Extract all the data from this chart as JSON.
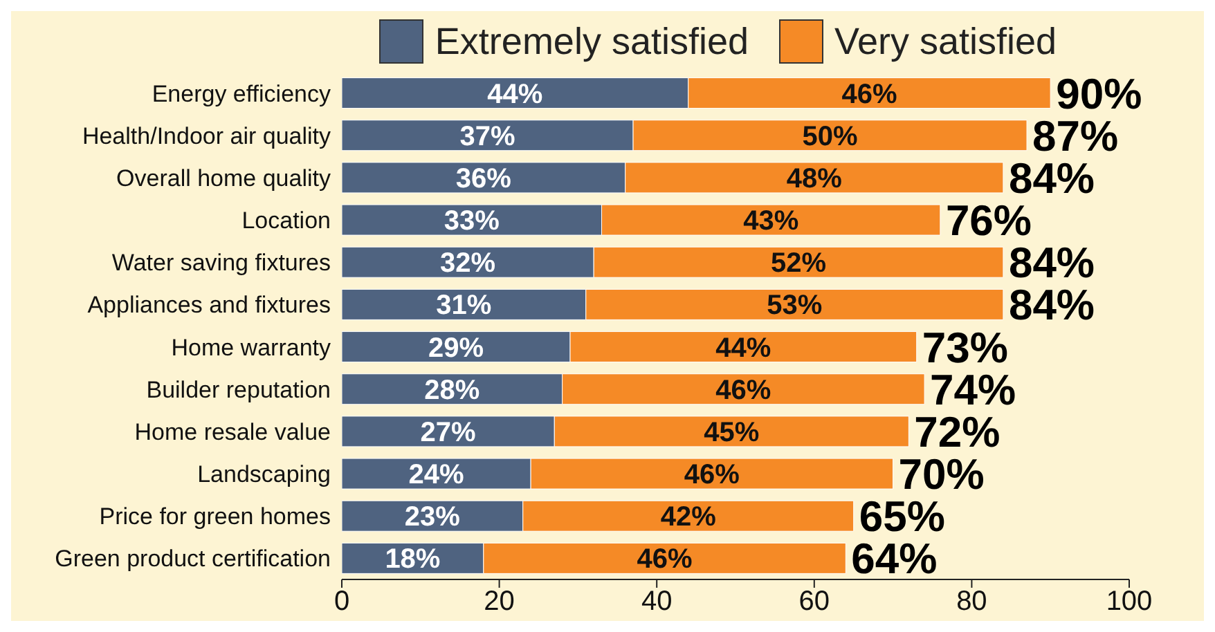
{
  "chart_data": {
    "type": "bar",
    "orientation": "horizontal",
    "stacked": true,
    "categories": [
      "Energy efficiency",
      "Health/Indoor air quality",
      "Overall home quality",
      "Location",
      "Water saving fixtures",
      "Appliances and fixtures",
      "Home warranty",
      "Builder reputation",
      "Home resale value",
      "Landscaping",
      "Price for green homes",
      "Green product certification"
    ],
    "series": [
      {
        "name": "Extremely satisfied",
        "color": "#4f6380",
        "values": [
          44,
          37,
          36,
          33,
          32,
          31,
          29,
          28,
          27,
          24,
          23,
          18
        ],
        "value_labels": [
          "44%",
          "37%",
          "36%",
          "33%",
          "32%",
          "31%",
          "29%",
          "28%",
          "27%",
          "24%",
          "23%",
          "18%"
        ]
      },
      {
        "name": "Very satisfied",
        "color": "#f58a26",
        "values": [
          46,
          50,
          48,
          43,
          52,
          53,
          44,
          46,
          45,
          46,
          42,
          46
        ],
        "value_labels": [
          "46%",
          "50%",
          "48%",
          "43%",
          "52%",
          "53%",
          "44%",
          "46%",
          "45%",
          "46%",
          "42%",
          "46%"
        ]
      }
    ],
    "totals": [
      "90%",
      "87%",
      "84%",
      "76%",
      "84%",
      "84%",
      "73%",
      "74%",
      "72%",
      "70%",
      "65%",
      "64%"
    ],
    "xlim": [
      0,
      100
    ],
    "xticks": [
      0,
      20,
      40,
      60,
      80,
      100
    ],
    "legend": "top"
  }
}
